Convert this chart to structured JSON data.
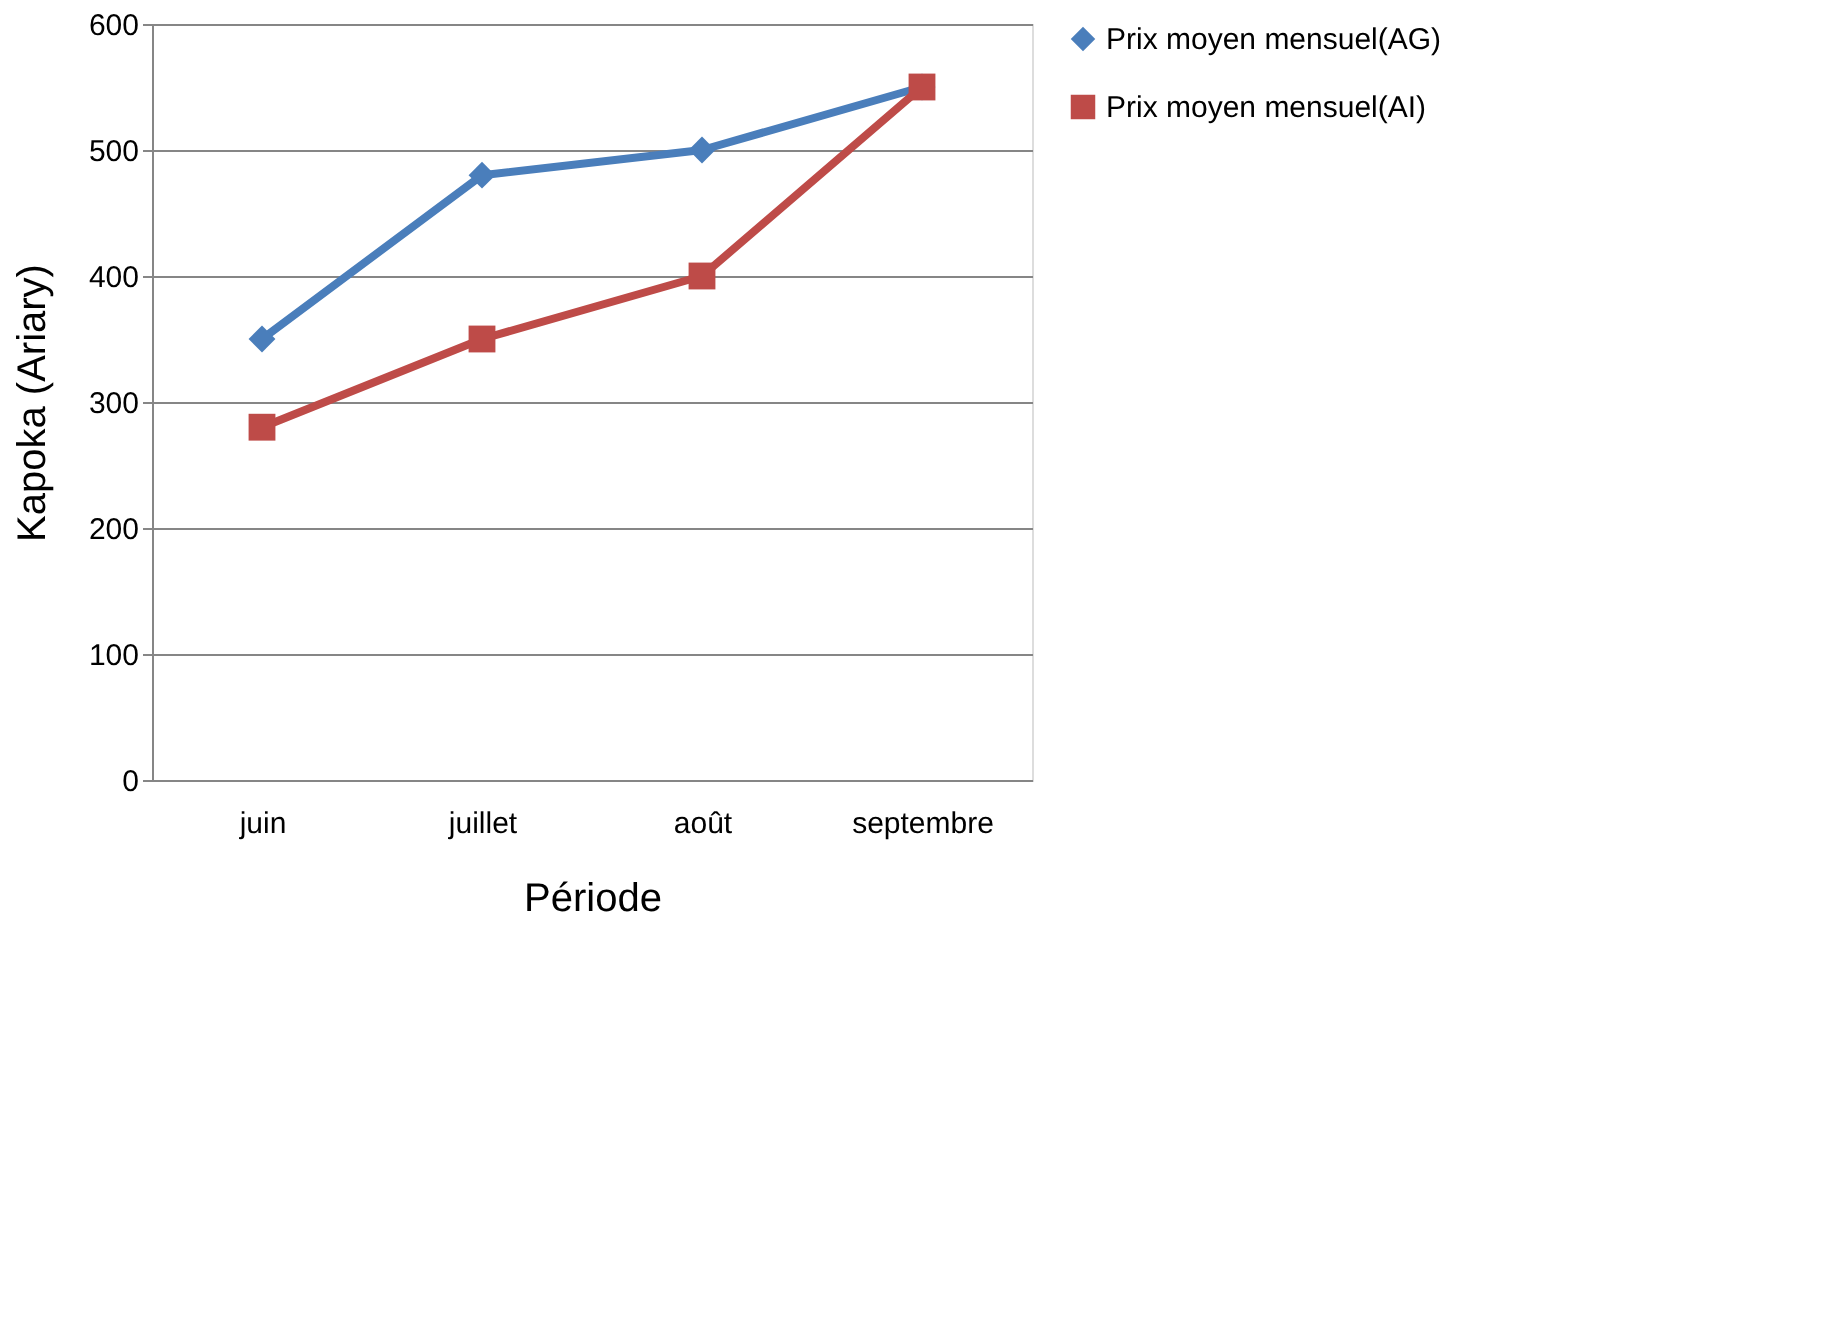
{
  "chart_data": {
    "type": "line",
    "xlabel": "Période",
    "ylabel": "Kapoka (Ariary)",
    "categories": [
      "juin",
      "juillet",
      "août",
      "septembre"
    ],
    "series": [
      {
        "name": "Prix moyen mensuel(AG)",
        "color": "#4a7ebb",
        "marker": "diamond",
        "values": [
          350,
          480,
          500,
          550
        ]
      },
      {
        "name": "Prix moyen mensuel(AI)",
        "color": "#be4b48",
        "marker": "square",
        "values": [
          280,
          350,
          400,
          550
        ]
      }
    ],
    "ylim": [
      0,
      600
    ],
    "yticks": [
      0,
      100,
      200,
      300,
      400,
      500,
      600
    ],
    "grid": "y",
    "legend": "right",
    "line_style": "solid"
  }
}
